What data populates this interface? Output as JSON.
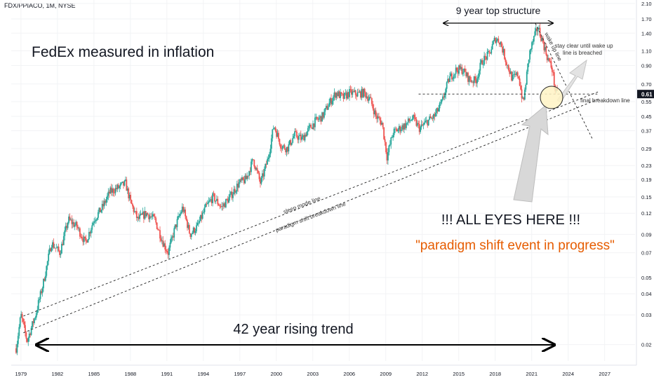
{
  "header": {
    "ticker": "FDX/PPIACO, 1M, NYSE"
  },
  "chart_data": {
    "type": "candlestick",
    "symbol": "FDX/PPIACO",
    "interval": "1M",
    "exchange": "NYSE",
    "y_scale": "log",
    "ylim": [
      0.016,
      2.2
    ],
    "xlim": [
      1978.2,
      2029.5
    ],
    "x_ticks": [
      "1979",
      "1982",
      "1985",
      "1988",
      "1991",
      "1994",
      "1997",
      "2000",
      "2003",
      "2006",
      "2009",
      "2012",
      "2015",
      "2018",
      "2021",
      "2024",
      "2027"
    ],
    "y_ticks": [
      "2.10",
      "1.70",
      "1.40",
      "1.10",
      "0.90",
      "0.70",
      "0.55",
      "0.45",
      "0.37",
      "0.29",
      "0.23",
      "0.19",
      "0.15",
      "0.12",
      "0.09",
      "0.07",
      "0.05",
      "0.04",
      "0.03",
      "0.02"
    ],
    "last_price": "0.61",
    "colors": {
      "up": "#26a69a",
      "down": "#ef5350",
      "price_tag_bg": "#131722",
      "orange_text": "#e65c00"
    },
    "price_path": [
      [
        1978.6,
        0.019
      ],
      [
        1979.0,
        0.03
      ],
      [
        1979.5,
        0.021
      ],
      [
        1980.2,
        0.03
      ],
      [
        1980.8,
        0.045
      ],
      [
        1981.5,
        0.08
      ],
      [
        1982.2,
        0.07
      ],
      [
        1982.9,
        0.11
      ],
      [
        1983.6,
        0.1
      ],
      [
        1984.3,
        0.08
      ],
      [
        1985.0,
        0.11
      ],
      [
        1985.7,
        0.13
      ],
      [
        1986.3,
        0.16
      ],
      [
        1987.0,
        0.17
      ],
      [
        1987.6,
        0.18
      ],
      [
        1988.0,
        0.14
      ],
      [
        1988.6,
        0.11
      ],
      [
        1989.3,
        0.12
      ],
      [
        1990.0,
        0.11
      ],
      [
        1990.7,
        0.08
      ],
      [
        1991.1,
        0.07
      ],
      [
        1991.7,
        0.1
      ],
      [
        1992.3,
        0.13
      ],
      [
        1992.9,
        0.09
      ],
      [
        1993.5,
        0.1
      ],
      [
        1994.2,
        0.13
      ],
      [
        1994.8,
        0.15
      ],
      [
        1995.5,
        0.13
      ],
      [
        1996.2,
        0.15
      ],
      [
        1996.9,
        0.18
      ],
      [
        1997.5,
        0.19
      ],
      [
        1998.1,
        0.25
      ],
      [
        1998.7,
        0.18
      ],
      [
        1999.3,
        0.25
      ],
      [
        1999.8,
        0.4
      ],
      [
        2000.4,
        0.3
      ],
      [
        2000.9,
        0.29
      ],
      [
        2001.5,
        0.35
      ],
      [
        2002.1,
        0.33
      ],
      [
        2002.7,
        0.38
      ],
      [
        2003.2,
        0.42
      ],
      [
        2003.8,
        0.45
      ],
      [
        2004.3,
        0.53
      ],
      [
        2004.9,
        0.62
      ],
      [
        2005.5,
        0.58
      ],
      [
        2006.0,
        0.62
      ],
      [
        2006.6,
        0.61
      ],
      [
        2007.2,
        0.62
      ],
      [
        2007.7,
        0.57
      ],
      [
        2008.2,
        0.45
      ],
      [
        2008.7,
        0.41
      ],
      [
        2009.1,
        0.26
      ],
      [
        2009.6,
        0.36
      ],
      [
        2010.1,
        0.38
      ],
      [
        2010.6,
        0.4
      ],
      [
        2011.2,
        0.44
      ],
      [
        2011.8,
        0.38
      ],
      [
        2012.4,
        0.42
      ],
      [
        2013.0,
        0.45
      ],
      [
        2013.6,
        0.54
      ],
      [
        2014.2,
        0.75
      ],
      [
        2014.8,
        0.85
      ],
      [
        2015.3,
        0.85
      ],
      [
        2015.9,
        0.74
      ],
      [
        2016.4,
        0.73
      ],
      [
        2016.9,
        0.95
      ],
      [
        2017.5,
        1.05
      ],
      [
        2018.0,
        1.3
      ],
      [
        2018.4,
        1.25
      ],
      [
        2018.9,
        0.95
      ],
      [
        2019.4,
        0.75
      ],
      [
        2019.9,
        0.8
      ],
      [
        2020.3,
        0.53
      ],
      [
        2020.8,
        1.05
      ],
      [
        2021.1,
        1.25
      ],
      [
        2021.5,
        1.52
      ],
      [
        2021.9,
        1.25
      ],
      [
        2022.3,
        1.0
      ],
      [
        2022.7,
        0.85
      ],
      [
        2022.95,
        0.63
      ],
      [
        2023.1,
        0.61
      ]
    ],
    "lines": [
      {
        "name": "sleep mode line",
        "from": [
          1979.2,
          0.0295
        ],
        "to": [
          2026.5,
          0.63
        ],
        "style": "dashed"
      },
      {
        "name": "paradigm shift breakdown line",
        "from": [
          1979.2,
          0.0235
        ],
        "to": [
          2026.5,
          0.57
        ],
        "style": "dashed"
      },
      {
        "name": "final breakdown line",
        "from": [
          2011.7,
          0.61
        ],
        "to": [
          2026.4,
          0.61
        ],
        "style": "dashed"
      },
      {
        "name": "wake up line",
        "from": [
          2021.3,
          1.6
        ],
        "to": [
          2026.0,
          0.33
        ],
        "style": "dashed"
      }
    ],
    "annotations": {
      "title": "FedEx measured in inflation",
      "top_structure": "9 year top structure",
      "wake_up": "wake up line",
      "stay_clear_1": "stay clear until wake up",
      "stay_clear_2": "line is breached",
      "final_breakdown": "final breakdown line",
      "sleep_mode": "sleep mode line",
      "paradigm_line": "paradigm shift breakdown line",
      "all_eyes": "!!! ALL EYES HERE !!!",
      "paradigm_event": "\"paradigm shift event in progress\"",
      "rising_trend": "42 year rising trend"
    }
  }
}
